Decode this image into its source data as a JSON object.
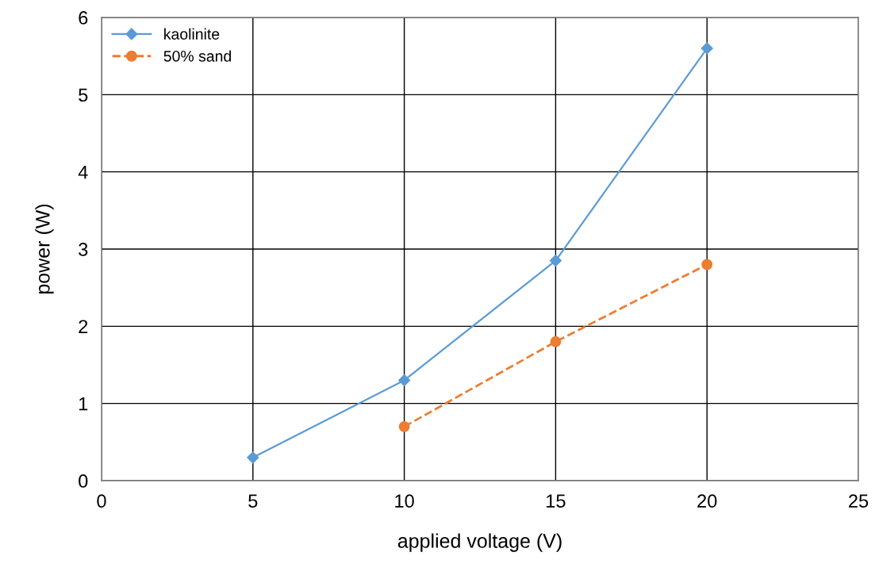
{
  "chart_data": {
    "type": "line",
    "xlabel": "applied voltage (V)",
    "ylabel": "power (W)",
    "xlim": [
      0,
      25
    ],
    "xticks": [
      0,
      5,
      10,
      15,
      20,
      25
    ],
    "ylim": [
      0,
      6
    ],
    "yticks": [
      0,
      1,
      2,
      3,
      4,
      5,
      6
    ],
    "grid": true,
    "legend": "top left",
    "series": [
      {
        "name": "kaolinite",
        "color": "#5b9bd5",
        "x": [
          5,
          10,
          15,
          20
        ],
        "values": [
          0.3,
          1.3,
          2.85,
          5.6
        ],
        "marker": "diamond",
        "line_style": "solid"
      },
      {
        "name": "50% sand",
        "color": "#ed7d31",
        "x": [
          10,
          15,
          20
        ],
        "values": [
          0.7,
          1.8,
          2.8
        ],
        "marker": "circle",
        "line_style": "dashed"
      }
    ]
  }
}
